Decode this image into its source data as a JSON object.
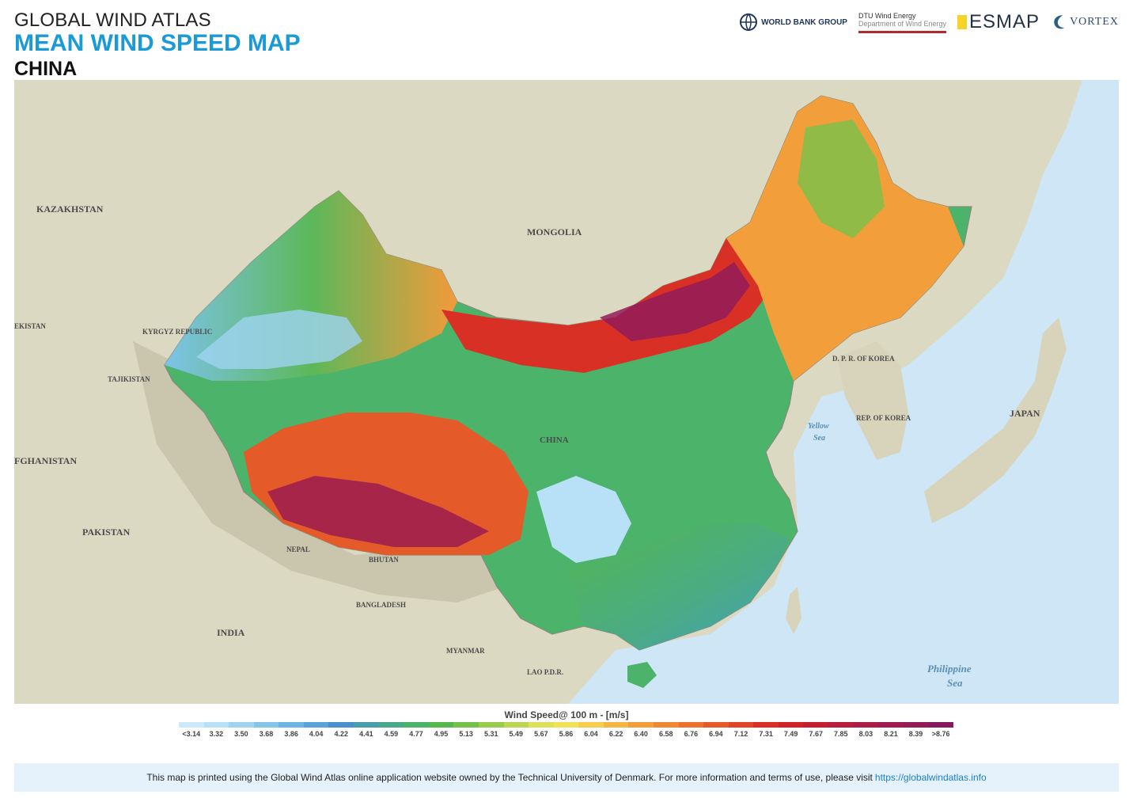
{
  "header": {
    "title_line1": "GLOBAL WIND ATLAS",
    "title_line2": "MEAN WIND SPEED MAP",
    "country": "CHINA"
  },
  "logos": {
    "world_bank": "WORLD BANK GROUP",
    "dtu_line1": "DTU Wind Energy",
    "dtu_line2": "Department of Wind Energy",
    "esmap": "ESMAP",
    "vortex": "VORTEX"
  },
  "map": {
    "country_labels": {
      "kazakhstan": "KAZAKHSTAN",
      "mongolia": "MONGOLIA",
      "ekistan": "EKISTAN",
      "kyrgyz": "KYRGYZ REPUBLIC",
      "tajikistan": "TAJIKISTAN",
      "afghanistan": "FGHANISTAN",
      "pakistan": "PAKISTAN",
      "china": "CHINA",
      "nepal": "NEPAL",
      "bhutan": "BHUTAN",
      "bangladesh": "BANGLADESH",
      "india": "INDIA",
      "myanmar": "MYANMAR",
      "lao": "LAO P.D.R.",
      "dprk": "D. P. R. OF KOREA",
      "korea": "REP. OF KOREA",
      "japan": "JAPAN"
    },
    "sea_labels": {
      "yellow_1": "Yellow",
      "yellow_2": "Sea",
      "philippine_1": "Philippine",
      "philippine_2": "Sea"
    },
    "colors": {
      "ocean": "#cfe6f6",
      "land": "#dcd9c2",
      "low": "#bfe3f7",
      "mid": "#4db34a",
      "high": "#e23524",
      "max": "#9a1e55"
    }
  },
  "legend": {
    "title": "Wind Speed@ 100 m - [m/s]",
    "ticks": [
      "<3.14",
      "3.32",
      "3.50",
      "3.68",
      "3.86",
      "4.04",
      "4.22",
      "4.41",
      "4.59",
      "4.77",
      "4.95",
      "5.13",
      "5.31",
      "5.49",
      "5.67",
      "5.86",
      "6.04",
      "6.22",
      "6.40",
      "6.58",
      "6.76",
      "6.94",
      "7.12",
      "7.31",
      "7.49",
      "7.67",
      "7.85",
      "8.03",
      "8.21",
      "8.39",
      ">8.76"
    ],
    "colors": [
      "#cdeafb",
      "#b8e0f7",
      "#9fd3f1",
      "#86c5ea",
      "#6db5e2",
      "#5aa3d8",
      "#4a90cc",
      "#4a9dad",
      "#4aa98b",
      "#4bb36a",
      "#55b84b",
      "#75c24a",
      "#99cc4d",
      "#bcd653",
      "#dfe05a",
      "#f2e25a",
      "#f6cd4e",
      "#f5b644",
      "#f29f3b",
      "#ee8834",
      "#ea712e",
      "#e55a29",
      "#e14426",
      "#d93025",
      "#cf2426",
      "#c51f2f",
      "#b81d3b",
      "#ab1c46",
      "#9e1c50",
      "#921b58",
      "#861a5f"
    ]
  },
  "footer": {
    "text": "This map is printed using the Global Wind Atlas online application website owned by the Technical University of Denmark. For more information and terms of use, please visit",
    "link": "https://globalwindatlas.info"
  }
}
